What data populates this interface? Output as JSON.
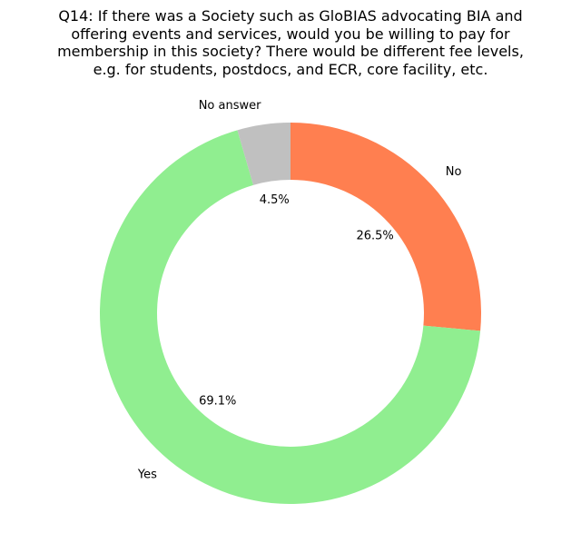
{
  "chart_data": {
    "type": "pie",
    "variant": "donut",
    "title": "Q14: If there was a Society such as GloBIAS advocating BIA and\noffering events and services, would you be willing to pay for\nmembership in this society? There would be different fee levels,\ne.g. for students, postdocs, and ECR, core facility, etc.",
    "slices": [
      {
        "label": "No",
        "value": 26.5,
        "pct_label": "26.5%",
        "color": "#ff7f50"
      },
      {
        "label": "Yes",
        "value": 69.1,
        "pct_label": "69.1%",
        "color": "#90ee90"
      },
      {
        "label": "No answer",
        "value": 4.5,
        "pct_label": "4.5%",
        "color": "#c0c0c0"
      }
    ],
    "start_angle_deg": 90,
    "direction": "clockwise",
    "legend": "none"
  }
}
